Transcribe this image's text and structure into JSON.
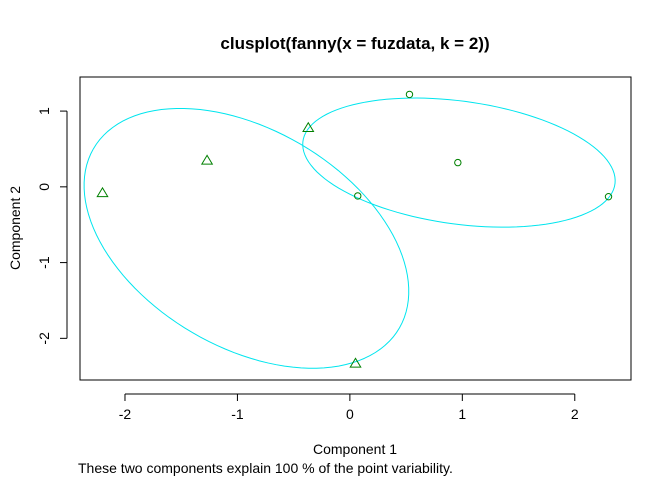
{
  "chart_data": {
    "type": "scatter",
    "title": "clusplot(fanny(x = fuzdata, k = 2))",
    "xlabel": "Component 1",
    "ylabel": "Component 2",
    "subtitle": "These two components explain 100 % of the point variability.",
    "xlim": [
      -2.4,
      2.5
    ],
    "ylim": [
      -2.55,
      1.45
    ],
    "x_ticks": [
      -2,
      -1,
      0,
      1,
      2
    ],
    "y_ticks": [
      -2,
      -1,
      0,
      1
    ],
    "x_tick_labels": [
      "-2",
      "-1",
      "0",
      "1",
      "2"
    ],
    "y_tick_labels": [
      "-2",
      "-1",
      "0",
      "1"
    ],
    "ellipse_color": "#00e5ee",
    "point_color": "#008000",
    "clusters": [
      {
        "marker": "triangle",
        "points": [
          {
            "x": -2.2,
            "y": -0.08
          },
          {
            "x": -1.27,
            "y": 0.35
          },
          {
            "x": -0.37,
            "y": 0.78
          },
          {
            "x": 0.05,
            "y": -2.33
          }
        ],
        "ellipse": {
          "cx": -0.92,
          "cy": -0.68,
          "a": 1.9,
          "b": 1.19,
          "angle_deg": -56.5
        }
      },
      {
        "marker": "circle",
        "points": [
          {
            "x": 0.53,
            "y": 1.22
          },
          {
            "x": 0.96,
            "y": 0.32
          },
          {
            "x": 2.3,
            "y": -0.13
          },
          {
            "x": 0.07,
            "y": -0.12
          }
        ],
        "ellipse": {
          "cx": 0.97,
          "cy": 0.32,
          "a": 1.42,
          "b": 0.8,
          "angle_deg": -14.5
        }
      }
    ]
  }
}
